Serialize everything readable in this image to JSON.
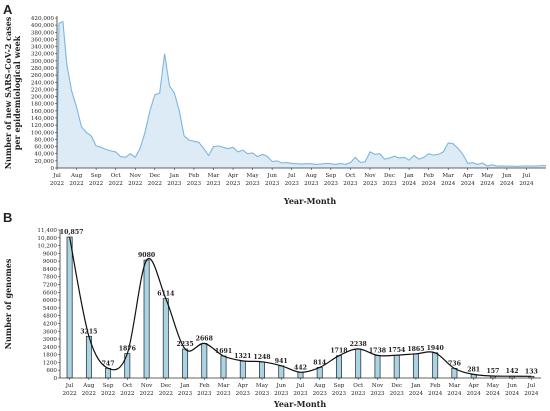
{
  "chart_data": [
    {
      "type": "area",
      "panel_label": "A",
      "xlabel": "Year-Month",
      "ylabel": "Number of new SARS-CoV-2 cases per epidemiological week",
      "ylim": [
        0,
        420000
      ],
      "ytick_labels": [
        "0",
        "20,000",
        "40,000",
        "60,000",
        "80,000",
        "100,000",
        "120,000",
        "140,000",
        "160,000",
        "180,000",
        "200,000",
        "220,000",
        "240,000",
        "260,000",
        "280,000",
        "300,000",
        "320,000",
        "340,000",
        "360,000",
        "380,000",
        "400,000",
        "420,000"
      ],
      "xtick_labels": [
        [
          "Jul",
          "2022"
        ],
        [
          "Aug",
          "2022"
        ],
        [
          "Sep",
          "2022"
        ],
        [
          "Oct",
          "2022"
        ],
        [
          "Nov",
          "2022"
        ],
        [
          "Dec",
          "2022"
        ],
        [
          "Jan",
          "2023"
        ],
        [
          "Feb",
          "2023"
        ],
        [
          "Mar",
          "2023"
        ],
        [
          "Apr",
          "2023"
        ],
        [
          "May",
          "2023"
        ],
        [
          "Jun",
          "2023"
        ],
        [
          "Jul",
          "2023"
        ],
        [
          "Aug",
          "2023"
        ],
        [
          "Sep",
          "2023"
        ],
        [
          "Oct",
          "2023"
        ],
        [
          "Nov",
          "2023"
        ],
        [
          "Dec",
          "2023"
        ],
        [
          "Jan",
          "2024"
        ],
        [
          "Feb",
          "2024"
        ],
        [
          "Mar",
          "2024"
        ],
        [
          "Apr",
          "2024"
        ],
        [
          "May",
          "2024"
        ],
        [
          "Jun",
          "2024"
        ],
        [
          "Jul",
          "2024"
        ]
      ],
      "x_range_months": [
        0,
        25
      ],
      "x": [
        0.0,
        0.1,
        0.3,
        0.5,
        0.75,
        1.0,
        1.25,
        1.5,
        1.75,
        2.0,
        2.25,
        2.5,
        2.75,
        3.0,
        3.25,
        3.5,
        3.75,
        4.0,
        4.25,
        4.5,
        4.75,
        5.0,
        5.25,
        5.5,
        5.75,
        6.0,
        6.25,
        6.5,
        6.75,
        7.0,
        7.25,
        7.5,
        7.75,
        8.0,
        8.25,
        8.5,
        8.75,
        9.0,
        9.25,
        9.5,
        9.75,
        10.0,
        10.25,
        10.5,
        10.75,
        11.0,
        11.25,
        11.5,
        11.75,
        12.0,
        12.25,
        12.5,
        12.75,
        13.0,
        13.25,
        13.5,
        13.75,
        14.0,
        14.25,
        14.5,
        14.75,
        15.0,
        15.25,
        15.5,
        15.75,
        16.0,
        16.25,
        16.5,
        16.75,
        17.0,
        17.25,
        17.5,
        17.75,
        18.0,
        18.25,
        18.5,
        18.75,
        19.0,
        19.25,
        19.5,
        19.75,
        20.0,
        20.25,
        20.5,
        20.75,
        21.0,
        21.25,
        21.5,
        21.75,
        22.0,
        22.25,
        22.5,
        22.75,
        23.0,
        23.25,
        23.5,
        23.75,
        24.0,
        24.25,
        24.5,
        24.75,
        25.0
      ],
      "values": [
        40000,
        405000,
        410000,
        290000,
        215000,
        170000,
        115000,
        100000,
        90000,
        62000,
        58000,
        52000,
        48000,
        45000,
        32000,
        30000,
        40000,
        30000,
        55000,
        100000,
        160000,
        205000,
        210000,
        320000,
        230000,
        210000,
        160000,
        90000,
        78000,
        75000,
        72000,
        55000,
        35000,
        60000,
        62000,
        58000,
        54000,
        58000,
        45000,
        50000,
        40000,
        42000,
        32000,
        38000,
        33000,
        18000,
        20000,
        14000,
        15000,
        13000,
        12000,
        11000,
        12000,
        12000,
        10000,
        11000,
        13000,
        12000,
        10000,
        13000,
        10000,
        15000,
        30000,
        16000,
        17000,
        45000,
        38000,
        40000,
        25000,
        28000,
        33000,
        28000,
        30000,
        22000,
        35000,
        25000,
        30000,
        40000,
        36000,
        38000,
        45000,
        70000,
        68000,
        55000,
        38000,
        13000,
        15000,
        10000,
        14000,
        6000,
        9000,
        5000,
        6000,
        5000,
        5500,
        4500,
        5500,
        6000,
        5000,
        5500,
        6500,
        7000
      ],
      "series_color": "#7fb6dd",
      "fill_color": "#dcebf6",
      "grid": false
    },
    {
      "type": "bar",
      "panel_label": "B",
      "xlabel": "Year-Month",
      "ylabel": "Number of genomes",
      "ylim": [
        0,
        11400
      ],
      "ytick_labels": [
        "0",
        "600",
        "1200",
        "1800",
        "2400",
        "3000",
        "3600",
        "4200",
        "4800",
        "5400",
        "6000",
        "6600",
        "7200",
        "7800",
        "8400",
        "9000",
        "9600",
        "10,200",
        "10,800",
        "11,400"
      ],
      "categories": [
        [
          "Jul",
          "2022"
        ],
        [
          "Aug",
          "2022"
        ],
        [
          "Sep",
          "2022"
        ],
        [
          "Oct",
          "2022"
        ],
        [
          "Nov",
          "2022"
        ],
        [
          "Dec",
          "2022"
        ],
        [
          "Jan",
          "2023"
        ],
        [
          "Feb",
          "2023"
        ],
        [
          "Mar",
          "2023"
        ],
        [
          "Apr",
          "2023"
        ],
        [
          "May",
          "2023"
        ],
        [
          "Jun",
          "2023"
        ],
        [
          "Jul",
          "2023"
        ],
        [
          "Aug",
          "2023"
        ],
        [
          "Sep",
          "2023"
        ],
        [
          "Oct",
          "2023"
        ],
        [
          "Nov",
          "2023"
        ],
        [
          "Dec",
          "2023"
        ],
        [
          "Jan",
          "2024"
        ],
        [
          "Feb",
          "2024"
        ],
        [
          "Mar",
          "2024"
        ],
        [
          "Apr",
          "2024"
        ],
        [
          "May",
          "2024"
        ],
        [
          "Jun",
          "2024"
        ],
        [
          "Jul",
          "2024"
        ]
      ],
      "values": [
        10857,
        3215,
        747,
        1876,
        9080,
        6114,
        2235,
        2668,
        1691,
        1321,
        1248,
        941,
        442,
        814,
        1718,
        2238,
        1738,
        1754,
        1865,
        1940,
        736,
        281,
        157,
        142,
        133
      ],
      "data_labels": [
        "10,857",
        "3215",
        "747",
        "1876",
        "9080",
        "6114",
        "2235",
        "2668",
        "1691",
        "1321",
        "1248",
        "941",
        "442",
        "814",
        "1718",
        "2238",
        "1738",
        "1754",
        "1865",
        "1940",
        "736",
        "281",
        "157",
        "142",
        "133"
      ],
      "bar_color": "#a8d4e6",
      "line_color": "#111111",
      "grid": false
    }
  ]
}
